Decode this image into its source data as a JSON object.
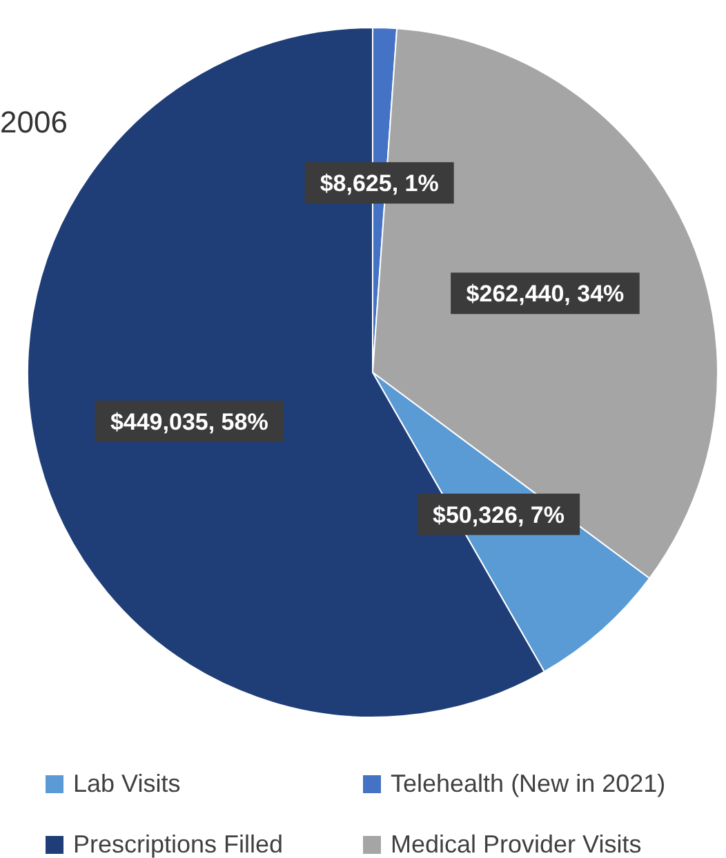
{
  "chart_data": {
    "type": "pie",
    "categories": [
      "Telehealth (New in 2021)",
      "Medical Provider Visits",
      "Lab Visits",
      "Prescriptions Filled"
    ],
    "values": [
      8625,
      262440,
      50326,
      449035
    ],
    "value_labels": [
      "$8,625, 1%",
      "$262,440, 34%",
      "$50,326, 7%",
      "$449,035, 58%"
    ],
    "colors": [
      "#4472c4",
      "#a5a5a5",
      "#5b9bd5",
      "#1f3e78"
    ],
    "legend": "bottom",
    "annotations": [
      "2006"
    ]
  }
}
